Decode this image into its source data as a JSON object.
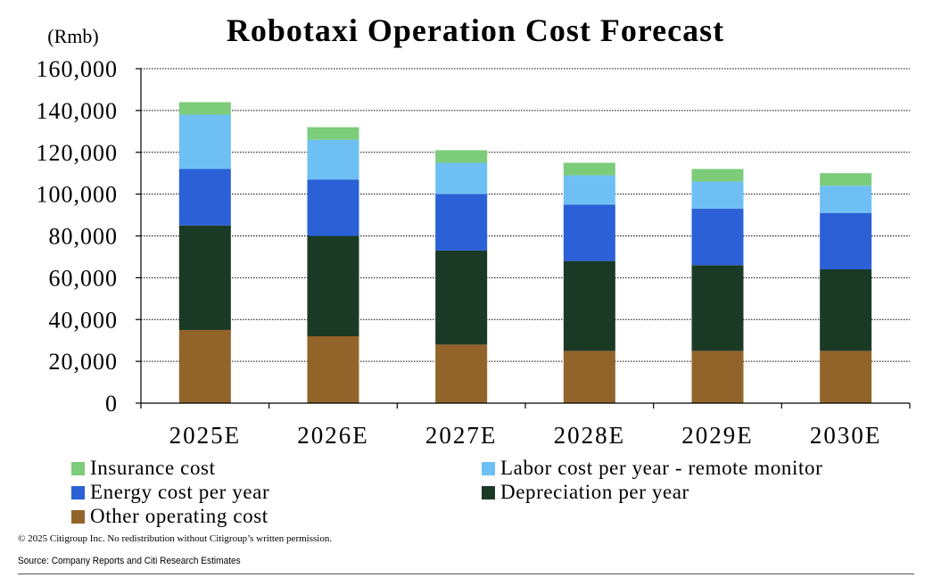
{
  "chart_data": {
    "type": "bar",
    "stacked": true,
    "title": "Robotaxi Operation Cost Forecast",
    "unit_label": "(Rmb)",
    "categories": [
      "2025E",
      "2026E",
      "2027E",
      "2028E",
      "2029E",
      "2030E"
    ],
    "ylim": [
      0,
      160000
    ],
    "yticks": [
      "0",
      "20,000",
      "40,000",
      "60,000",
      "80,000",
      "100,000",
      "120,000",
      "140,000",
      "160,000"
    ],
    "ytick_values": [
      0,
      20000,
      40000,
      60000,
      80000,
      100000,
      120000,
      140000,
      160000
    ],
    "grid": true,
    "legend_position": "bottom",
    "series": [
      {
        "name": "Other operating cost",
        "color": "#93642a",
        "values": [
          35000,
          32000,
          28000,
          25000,
          25000,
          25000
        ]
      },
      {
        "name": "Depreciation per year",
        "color": "#1b3a25",
        "values": [
          50000,
          48000,
          45000,
          43000,
          41000,
          39000
        ]
      },
      {
        "name": "Energy cost per year",
        "color": "#2b60d6",
        "values": [
          27000,
          27000,
          27000,
          27000,
          27000,
          27000
        ]
      },
      {
        "name": "Labor cost per year - remote monitor",
        "color": "#6ec0f4",
        "values": [
          26000,
          19000,
          15000,
          14000,
          13000,
          13000
        ]
      },
      {
        "name": "Insurance cost",
        "color": "#7ccc7a",
        "values": [
          6000,
          6000,
          6000,
          6000,
          6000,
          6000
        ]
      }
    ]
  },
  "legend_order": [
    "Insurance cost",
    "Labor cost per year - remote monitor",
    "Energy cost per year",
    "Depreciation per year",
    "Other operating cost"
  ],
  "footer": {
    "copyright": "© 2025 Citigroup Inc. No redistribution without Citigroup’s written permission.",
    "source": "Source: Company Reports and Citi Research Estimates"
  }
}
